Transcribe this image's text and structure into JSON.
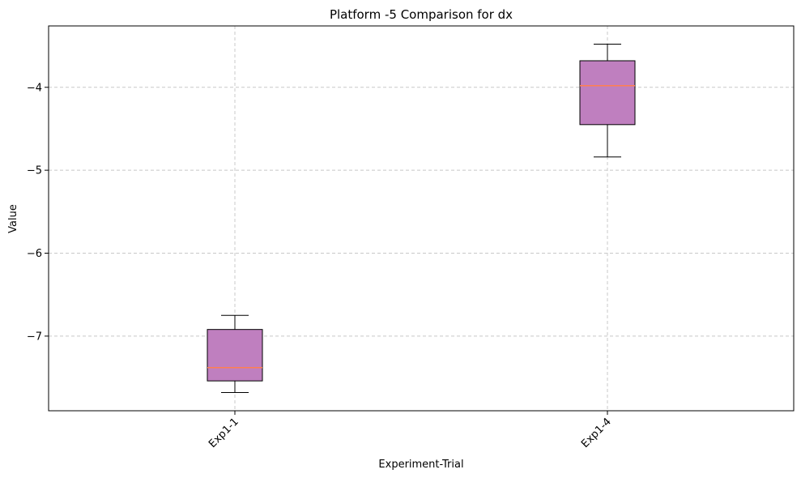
{
  "chart_data": {
    "type": "box",
    "title": "Platform -5 Comparison for dx",
    "xlabel": "Experiment-Trial",
    "ylabel": "Value",
    "ylim": [
      -7.9,
      -3.26
    ],
    "yticks": [
      -7,
      -6,
      -5,
      -4
    ],
    "ytick_labels": [
      "−7",
      "−6",
      "−5",
      "−4"
    ],
    "grid": true,
    "categories": [
      "Exp1-1",
      "Exp1-4"
    ],
    "boxes": [
      {
        "category": "Exp1-1",
        "whisker_low": -7.68,
        "q1": -7.54,
        "median": -7.38,
        "q3": -6.92,
        "whisker_high": -6.75
      },
      {
        "category": "Exp1-4",
        "whisker_low": -4.84,
        "q1": -4.45,
        "median": -3.98,
        "q3": -3.68,
        "whisker_high": -3.48
      }
    ],
    "colors": {
      "box_fill": "#bf7fbf",
      "box_edge": "#000000",
      "median": "#ff7f50",
      "grid": "#c8c8c8"
    }
  }
}
